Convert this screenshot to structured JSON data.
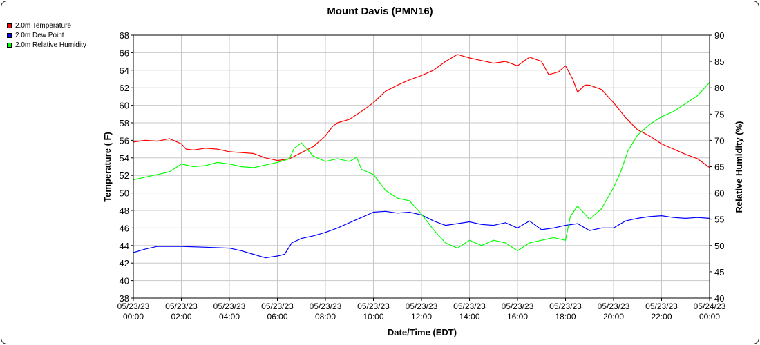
{
  "chart_data": {
    "type": "line",
    "title": "Mount Davis (PMN16)",
    "xlabel": "Date/Time (EDT)",
    "ylabel_left": "Temperature ( F)",
    "ylabel_right": "Relative Humidity (%)",
    "ylim_left": [
      38,
      68
    ],
    "ylim_right": [
      40,
      90
    ],
    "xlim_hours": [
      0,
      24
    ],
    "grid": true,
    "legend_position": "top-left",
    "x_ticks": [
      {
        "hour": 0,
        "date": "05/23/23",
        "time": "00:00"
      },
      {
        "hour": 2,
        "date": "05/23/23",
        "time": "02:00"
      },
      {
        "hour": 4,
        "date": "05/23/23",
        "time": "04:00"
      },
      {
        "hour": 6,
        "date": "05/23/23",
        "time": "06:00"
      },
      {
        "hour": 8,
        "date": "05/23/23",
        "time": "08:00"
      },
      {
        "hour": 10,
        "date": "05/23/23",
        "time": "10:00"
      },
      {
        "hour": 12,
        "date": "05/23/23",
        "time": "12:00"
      },
      {
        "hour": 14,
        "date": "05/23/23",
        "time": "14:00"
      },
      {
        "hour": 16,
        "date": "05/23/23",
        "time": "16:00"
      },
      {
        "hour": 18,
        "date": "05/23/23",
        "time": "18:00"
      },
      {
        "hour": 20,
        "date": "05/23/23",
        "time": "20:00"
      },
      {
        "hour": 22,
        "date": "05/23/23",
        "time": "22:00"
      },
      {
        "hour": 24,
        "date": "05/24/23",
        "time": "00:00"
      }
    ],
    "y_ticks_left": [
      38,
      40,
      42,
      44,
      46,
      48,
      50,
      52,
      54,
      56,
      58,
      60,
      62,
      64,
      66,
      68
    ],
    "y_ticks_right": [
      40,
      45,
      50,
      55,
      60,
      65,
      70,
      75,
      80,
      85,
      90
    ],
    "series": [
      {
        "name": "2.0m Temperature",
        "color": "#ff0000",
        "axis": "left",
        "points": [
          [
            0,
            55.8
          ],
          [
            0.5,
            56.0
          ],
          [
            1,
            55.9
          ],
          [
            1.5,
            56.2
          ],
          [
            2,
            55.6
          ],
          [
            2.2,
            55.0
          ],
          [
            2.5,
            54.9
          ],
          [
            3,
            55.1
          ],
          [
            3.5,
            55.0
          ],
          [
            4,
            54.7
          ],
          [
            4.5,
            54.6
          ],
          [
            5,
            54.5
          ],
          [
            5.5,
            54.0
          ],
          [
            6,
            53.7
          ],
          [
            6.5,
            53.9
          ],
          [
            7,
            54.6
          ],
          [
            7.5,
            55.3
          ],
          [
            8,
            56.5
          ],
          [
            8.3,
            57.6
          ],
          [
            8.5,
            58.0
          ],
          [
            9,
            58.4
          ],
          [
            9.5,
            59.3
          ],
          [
            10,
            60.3
          ],
          [
            10.5,
            61.6
          ],
          [
            11,
            62.3
          ],
          [
            11.5,
            62.9
          ],
          [
            12,
            63.4
          ],
          [
            12.5,
            64.0
          ],
          [
            13,
            65.0
          ],
          [
            13.5,
            65.8
          ],
          [
            14,
            65.4
          ],
          [
            14.5,
            65.1
          ],
          [
            15,
            64.8
          ],
          [
            15.5,
            65.0
          ],
          [
            16,
            64.5
          ],
          [
            16.5,
            65.5
          ],
          [
            17,
            65.0
          ],
          [
            17.3,
            63.5
          ],
          [
            17.7,
            63.8
          ],
          [
            18,
            64.5
          ],
          [
            18.3,
            63.0
          ],
          [
            18.5,
            61.5
          ],
          [
            18.8,
            62.3
          ],
          [
            19,
            62.3
          ],
          [
            19.5,
            61.8
          ],
          [
            20,
            60.3
          ],
          [
            20.5,
            58.6
          ],
          [
            21,
            57.2
          ],
          [
            21.5,
            56.5
          ],
          [
            22,
            55.6
          ],
          [
            22.5,
            55.0
          ],
          [
            23,
            54.4
          ],
          [
            23.5,
            53.9
          ],
          [
            24,
            52.9
          ]
        ]
      },
      {
        "name": "2.0m Dew Point",
        "color": "#0000ff",
        "axis": "left",
        "points": [
          [
            0,
            43.2
          ],
          [
            0.5,
            43.6
          ],
          [
            1,
            43.9
          ],
          [
            2,
            43.9
          ],
          [
            3,
            43.8
          ],
          [
            4,
            43.7
          ],
          [
            4.5,
            43.4
          ],
          [
            5,
            43.0
          ],
          [
            5.5,
            42.6
          ],
          [
            6,
            42.8
          ],
          [
            6.3,
            43.0
          ],
          [
            6.6,
            44.3
          ],
          [
            7,
            44.8
          ],
          [
            7.5,
            45.1
          ],
          [
            8,
            45.5
          ],
          [
            8.5,
            46.0
          ],
          [
            9,
            46.6
          ],
          [
            9.5,
            47.2
          ],
          [
            10,
            47.8
          ],
          [
            10.5,
            47.9
          ],
          [
            11,
            47.7
          ],
          [
            11.5,
            47.8
          ],
          [
            12,
            47.5
          ],
          [
            12.5,
            46.8
          ],
          [
            13,
            46.3
          ],
          [
            13.5,
            46.5
          ],
          [
            14,
            46.7
          ],
          [
            14.5,
            46.4
          ],
          [
            15,
            46.3
          ],
          [
            15.5,
            46.6
          ],
          [
            16,
            46.0
          ],
          [
            16.5,
            46.8
          ],
          [
            17,
            45.8
          ],
          [
            17.5,
            46.0
          ],
          [
            18,
            46.3
          ],
          [
            18.5,
            46.5
          ],
          [
            19,
            45.7
          ],
          [
            19.5,
            46.0
          ],
          [
            20,
            46.0
          ],
          [
            20.5,
            46.8
          ],
          [
            21,
            47.1
          ],
          [
            21.5,
            47.3
          ],
          [
            22,
            47.4
          ],
          [
            22.5,
            47.2
          ],
          [
            23,
            47.1
          ],
          [
            23.5,
            47.2
          ],
          [
            24,
            47.1
          ]
        ]
      },
      {
        "name": "2.0m Relative Humidity",
        "color": "#00ff00",
        "axis": "right",
        "points": [
          [
            0,
            62.5
          ],
          [
            0.5,
            63.0
          ],
          [
            1,
            63.5
          ],
          [
            1.5,
            64.0
          ],
          [
            2,
            65.5
          ],
          [
            2.5,
            65.0
          ],
          [
            3,
            65.2
          ],
          [
            3.5,
            65.8
          ],
          [
            4,
            65.5
          ],
          [
            4.5,
            65.0
          ],
          [
            5,
            64.8
          ],
          [
            5.5,
            65.3
          ],
          [
            6,
            65.8
          ],
          [
            6.5,
            66.5
          ],
          [
            6.7,
            68.5
          ],
          [
            7,
            69.5
          ],
          [
            7.5,
            67.0
          ],
          [
            8,
            66.0
          ],
          [
            8.5,
            66.5
          ],
          [
            9,
            66.0
          ],
          [
            9.3,
            66.8
          ],
          [
            9.5,
            64.5
          ],
          [
            10,
            63.5
          ],
          [
            10.5,
            60.5
          ],
          [
            11,
            59.0
          ],
          [
            11.5,
            58.5
          ],
          [
            12,
            56.0
          ],
          [
            12.5,
            53.0
          ],
          [
            13,
            50.5
          ],
          [
            13.5,
            49.5
          ],
          [
            14,
            51.0
          ],
          [
            14.5,
            50.0
          ],
          [
            15,
            51.0
          ],
          [
            15.5,
            50.5
          ],
          [
            16,
            49.0
          ],
          [
            16.5,
            50.5
          ],
          [
            17,
            51.0
          ],
          [
            17.5,
            51.5
          ],
          [
            18,
            51.0
          ],
          [
            18.2,
            55.5
          ],
          [
            18.5,
            57.5
          ],
          [
            19,
            55.0
          ],
          [
            19.5,
            57.0
          ],
          [
            20,
            61.0
          ],
          [
            20.3,
            64.0
          ],
          [
            20.6,
            68.0
          ],
          [
            21,
            71.0
          ],
          [
            21.5,
            73.0
          ],
          [
            22,
            74.5
          ],
          [
            22.5,
            75.5
          ],
          [
            23,
            77.0
          ],
          [
            23.5,
            78.5
          ],
          [
            24,
            81.0
          ]
        ]
      }
    ]
  }
}
